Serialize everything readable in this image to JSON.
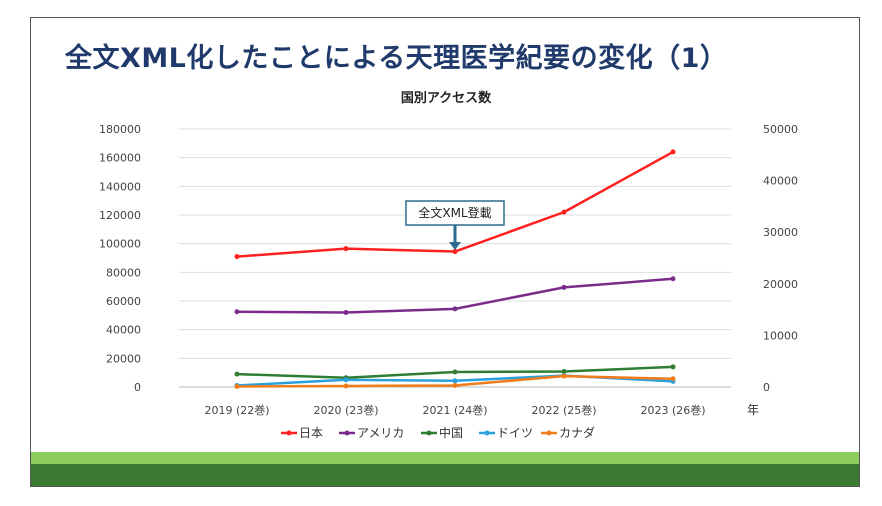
{
  "slide": {
    "title": "全文XML化したことによる天理医学紀要の変化（1）"
  },
  "colors": {
    "title": "#1f3a6b",
    "band_light": "#8dcd5f",
    "band_dark": "#3d7a32"
  },
  "chart_data": {
    "type": "line",
    "title": "国別アクセス数",
    "xlabel": "年",
    "categories": [
      "2019 (22巻)",
      "2020 (23巻)",
      "2021 (24巻)",
      "2022 (25巻)",
      "2023 (26巻)"
    ],
    "y_left": {
      "ylim": [
        0,
        180000
      ],
      "ticks": [
        "180000",
        "160000",
        "140000",
        "120000",
        "100000",
        "80000",
        "60000",
        "40000",
        "20000",
        "0"
      ]
    },
    "y_right": {
      "ylim": [
        0,
        50000
      ],
      "ticks": [
        "50000",
        "40000",
        "30000",
        "20000",
        "10000",
        "0"
      ]
    },
    "series": [
      {
        "name": "日本",
        "color": "#ff2020",
        "axis": "left",
        "values": [
          91000,
          96500,
          94500,
          122000,
          164000
        ]
      },
      {
        "name": "アメリカ",
        "color": "#7b2c8a",
        "axis": "left",
        "values": [
          52500,
          52000,
          54500,
          69500,
          75500
        ]
      },
      {
        "name": "中国",
        "color": "#2e7d32",
        "axis": "right",
        "values": [
          2500,
          1800,
          2900,
          3000,
          3900
        ]
      },
      {
        "name": "ドイツ",
        "color": "#2aa0dc",
        "axis": "right",
        "values": [
          300,
          1400,
          1200,
          2200,
          1100
        ]
      },
      {
        "name": "カナダ",
        "color": "#f07c1c",
        "axis": "right",
        "values": [
          100,
          200,
          300,
          2100,
          1600
        ]
      }
    ],
    "annotation": {
      "text": "全文XML登載",
      "category_index": 2
    },
    "grid": true,
    "legend": "bottom"
  }
}
